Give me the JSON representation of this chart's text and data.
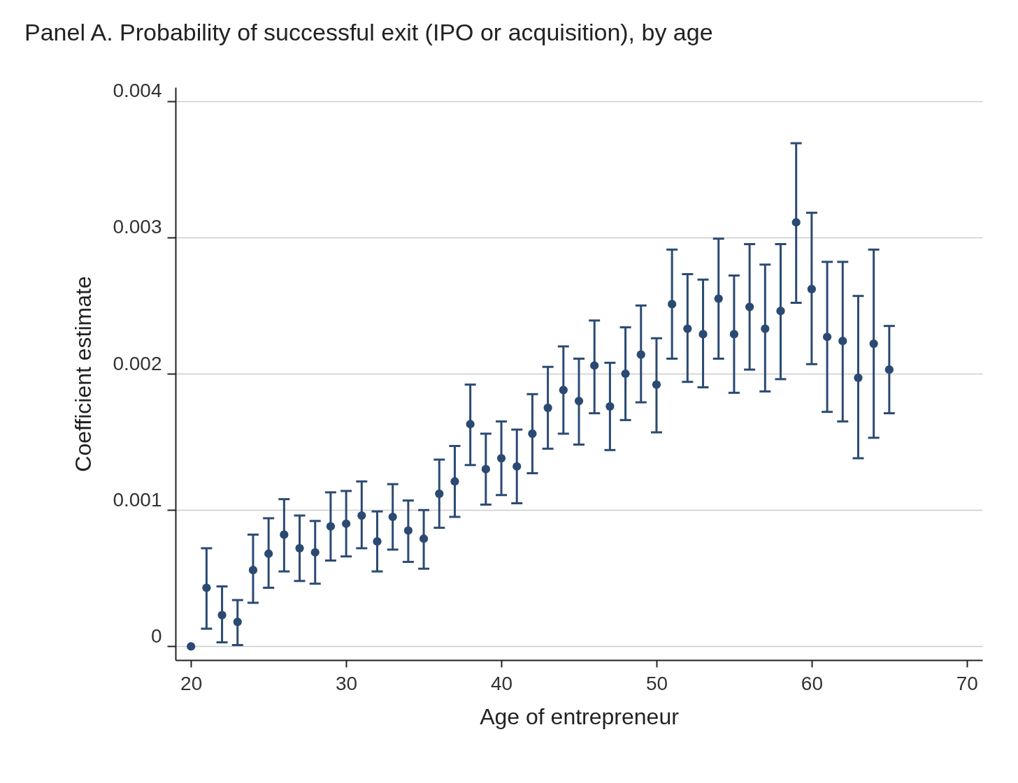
{
  "chart_data": {
    "type": "scatter",
    "title": "Panel A. Probability of successful exit (IPO or acquisition), by age",
    "xlabel": "Age of entrepreneur",
    "ylabel": "Coefficient estimate",
    "x": [
      20,
      21,
      22,
      23,
      24,
      25,
      26,
      27,
      28,
      29,
      30,
      31,
      32,
      33,
      34,
      35,
      36,
      37,
      38,
      39,
      40,
      41,
      42,
      43,
      44,
      45,
      46,
      47,
      48,
      49,
      50,
      51,
      52,
      53,
      54,
      55,
      56,
      57,
      58,
      59,
      60,
      61,
      62,
      63,
      64,
      65
    ],
    "series": [
      {
        "color": "#2b4a73",
        "values": [
          0,
          0.00043,
          0.00023,
          0.00018,
          0.00056,
          0.00068,
          0.00082,
          0.00072,
          0.00069,
          0.00088,
          0.0009,
          0.00096,
          0.00077,
          0.00095,
          0.00085,
          0.00079,
          0.00112,
          0.00121,
          0.00163,
          0.0013,
          0.00138,
          0.00132,
          0.00156,
          0.00175,
          0.00188,
          0.0018,
          0.00206,
          0.00176,
          0.002,
          0.00214,
          0.00192,
          0.00251,
          0.00233,
          0.00229,
          0.00255,
          0.00229,
          0.00249,
          0.00233,
          0.00246,
          0.00311,
          0.00262,
          0.00227,
          0.00224,
          0.00197,
          0.00222,
          0.00203
        ],
        "errors": [
          null,
          [
            0.00013,
            0.00072
          ],
          [
            3e-05,
            0.00044
          ],
          [
            1e-05,
            0.00034
          ],
          [
            0.00032,
            0.00082
          ],
          [
            0.00043,
            0.00094
          ],
          [
            0.00055,
            0.00108
          ],
          [
            0.00048,
            0.00096
          ],
          [
            0.00046,
            0.00092
          ],
          [
            0.00063,
            0.00113
          ],
          [
            0.00066,
            0.00114
          ],
          [
            0.00072,
            0.00121
          ],
          [
            0.00055,
            0.00099
          ],
          [
            0.00071,
            0.00119
          ],
          [
            0.00062,
            0.00107
          ],
          [
            0.00057,
            0.001
          ],
          [
            0.00087,
            0.00137
          ],
          [
            0.00095,
            0.00147
          ],
          [
            0.00133,
            0.00192
          ],
          [
            0.00104,
            0.00156
          ],
          [
            0.00111,
            0.00165
          ],
          [
            0.00105,
            0.00159
          ],
          [
            0.00127,
            0.00185
          ],
          [
            0.00145,
            0.00205
          ],
          [
            0.00156,
            0.0022
          ],
          [
            0.00148,
            0.00211
          ],
          [
            0.00171,
            0.00239
          ],
          [
            0.00144,
            0.00208
          ],
          [
            0.00166,
            0.00234
          ],
          [
            0.00179,
            0.0025
          ],
          [
            0.00157,
            0.00226
          ],
          [
            0.00211,
            0.00291
          ],
          [
            0.00194,
            0.00273
          ],
          [
            0.0019,
            0.00269
          ],
          [
            0.00211,
            0.00299
          ],
          [
            0.00186,
            0.00272
          ],
          [
            0.00203,
            0.00295
          ],
          [
            0.00187,
            0.0028
          ],
          [
            0.00196,
            0.00295
          ],
          [
            0.00252,
            0.00369
          ],
          [
            0.00207,
            0.00318
          ],
          [
            0.00172,
            0.00282
          ],
          [
            0.00165,
            0.00282
          ],
          [
            0.00138,
            0.00257
          ],
          [
            0.00153,
            0.00291
          ],
          [
            0.00171,
            0.00235
          ]
        ]
      }
    ],
    "xlim": [
      19,
      71
    ],
    "xticks": [
      20,
      30,
      40,
      50,
      60,
      70
    ],
    "ylim": [
      -0.0001,
      0.0041
    ],
    "yticks": [
      0,
      0.001,
      0.002,
      0.003,
      0.004
    ],
    "grid": "y",
    "marker": "circle"
  }
}
